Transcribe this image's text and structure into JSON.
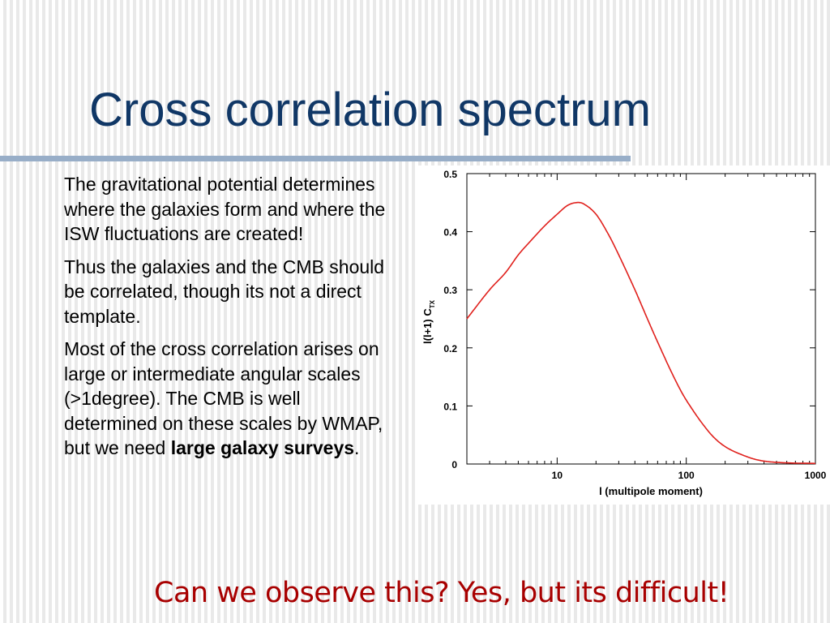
{
  "slide": {
    "title": "Cross correlation spectrum",
    "paragraphs": [
      "The gravitational potential determines where the galaxies form and where the ISW fluctuations are created!",
      "Thus the galaxies and the CMB should be correlated, though its not a direct template."
    ],
    "paragraph3": {
      "text_before": "Most of the cross correlation arises on large or intermediate angular scales (>1degree). The CMB is well determined on these scales by WMAP, but we need ",
      "bold": "large galaxy surveys",
      "text_after": "."
    },
    "footer": "Can we observe this? Yes, but its difficult!"
  },
  "colors": {
    "title": "#103766",
    "rule": "#98aec8",
    "footer": "#a80000",
    "curve": "#e0201c"
  },
  "chart_data": {
    "type": "line",
    "xlabel": "l (multipole moment)",
    "ylabel_main": "l(l+1) C",
    "ylabel_sub": "TX",
    "x_scale": "log",
    "xlim": [
      2,
      1000
    ],
    "ylim": [
      0,
      0.5
    ],
    "x_ticks": [
      {
        "value": 10,
        "label": "10"
      },
      {
        "value": 100,
        "label": "100"
      },
      {
        "value": 1000,
        "label": "1000"
      }
    ],
    "y_ticks": [
      {
        "value": 0,
        "label": "0"
      },
      {
        "value": 0.1,
        "label": "0.1"
      },
      {
        "value": 0.2,
        "label": "0.2"
      },
      {
        "value": 0.3,
        "label": "0.3"
      },
      {
        "value": 0.4,
        "label": "0.4"
      },
      {
        "value": 0.5,
        "label": "0.5"
      }
    ],
    "grid": false,
    "series": [
      {
        "x": [
          2,
          3,
          4,
          5,
          6,
          8,
          10,
          12,
          14,
          16,
          20,
          25,
          30,
          40,
          50,
          60,
          80,
          100,
          150,
          200,
          300,
          400,
          600,
          1000
        ],
        "y": [
          0.25,
          0.3,
          0.33,
          0.36,
          0.38,
          0.41,
          0.43,
          0.445,
          0.45,
          0.448,
          0.43,
          0.395,
          0.36,
          0.3,
          0.25,
          0.21,
          0.15,
          0.11,
          0.055,
          0.03,
          0.012,
          0.005,
          0.002,
          0.001
        ]
      }
    ]
  }
}
